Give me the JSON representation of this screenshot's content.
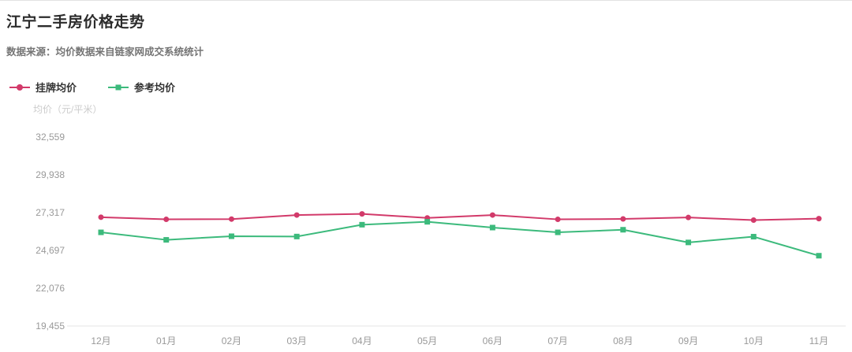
{
  "header": {
    "title": "江宁二手房价格走势",
    "subtitle": "数据来源：均价数据来自链家网成交系统统计"
  },
  "chart_data": {
    "type": "line",
    "title": "江宁二手房价格走势",
    "xlabel": "",
    "ylabel": "均价（元/平米）",
    "categories": [
      "12月",
      "01月",
      "02月",
      "03月",
      "04月",
      "05月",
      "06月",
      "07月",
      "08月",
      "09月",
      "10月",
      "11月"
    ],
    "series": [
      {
        "name": "挂牌均价",
        "color": "#d23a6a",
        "marker": "circle",
        "values": [
          27000,
          26850,
          26870,
          27150,
          27230,
          26950,
          27150,
          26850,
          26880,
          26980,
          26800,
          26900
        ]
      },
      {
        "name": "参考均价",
        "color": "#3cba7c",
        "marker": "square",
        "values": [
          25950,
          25430,
          25680,
          25660,
          26480,
          26680,
          26280,
          25950,
          26130,
          25250,
          25650,
          24330
        ]
      }
    ],
    "ylim": [
      19455,
      32559
    ],
    "yticks": [
      "19,455",
      "22,076",
      "24,697",
      "27,317",
      "29,938",
      "32,559"
    ],
    "grid": false,
    "legend_position": "top-left"
  }
}
